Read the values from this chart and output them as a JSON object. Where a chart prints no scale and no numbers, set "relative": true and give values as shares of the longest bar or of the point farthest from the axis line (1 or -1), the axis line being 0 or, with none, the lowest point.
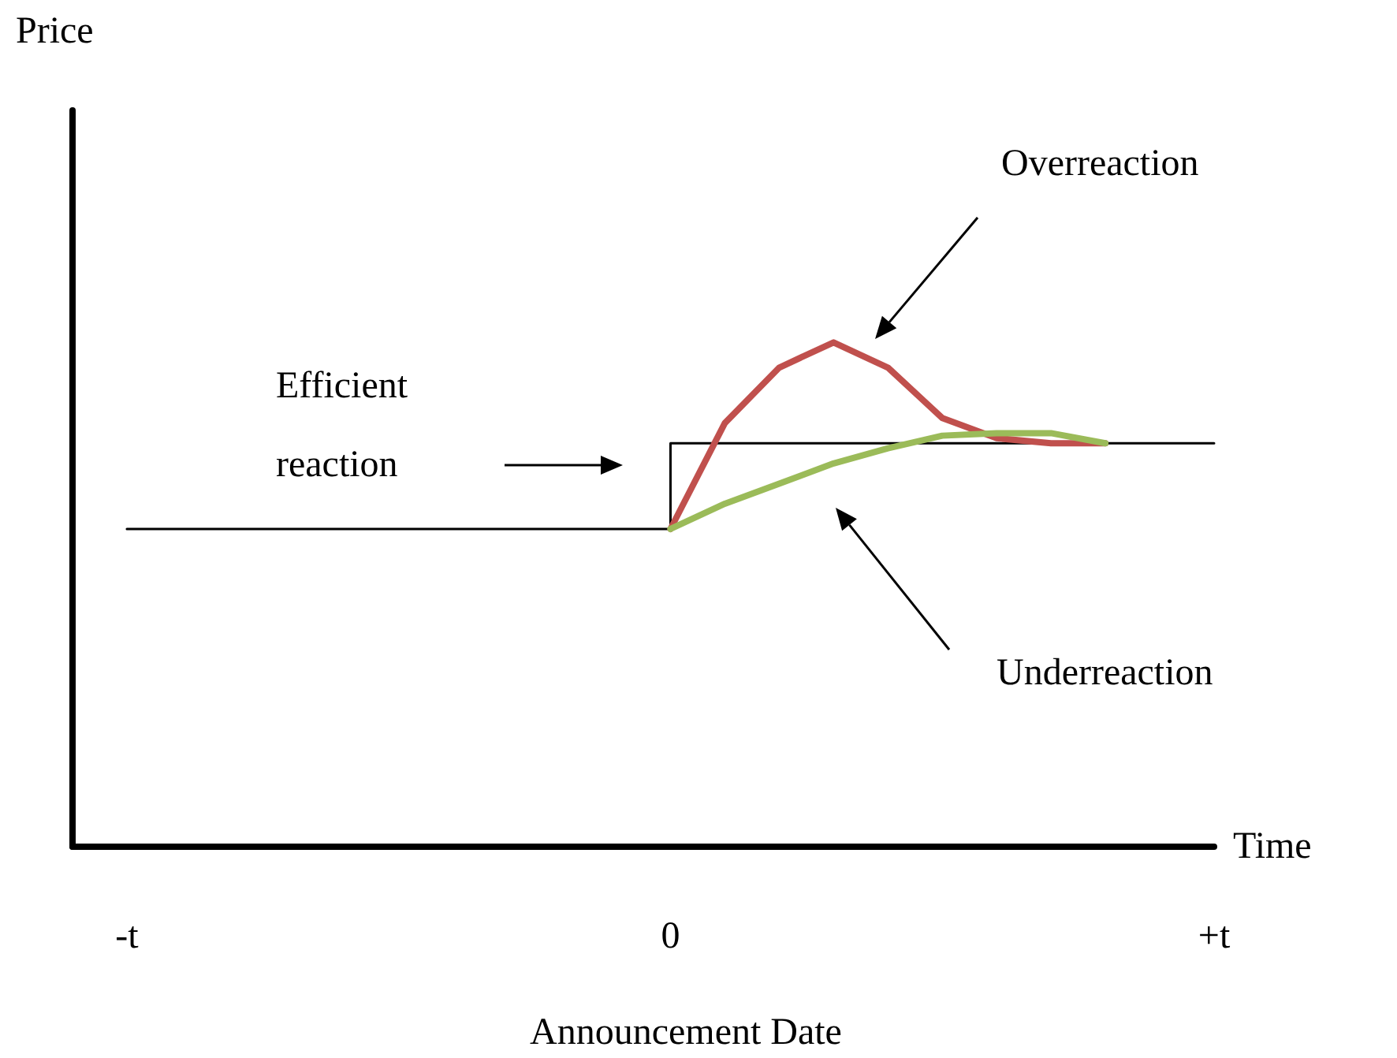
{
  "chart_data": {
    "type": "line",
    "relative": true,
    "xlabel": "Time",
    "categories": [
      null,
      "-t",
      null,
      null,
      null,
      null,
      null,
      null,
      null,
      null,
      null,
      "0",
      null,
      null,
      null,
      null,
      null,
      null,
      null,
      null,
      null,
      "+t"
    ],
    "series": [
      {
        "type": "step",
        "color": "#000000",
        "values": [
          null,
          0.63,
          0.63,
          0.63,
          0.63,
          0.63,
          0.63,
          0.63,
          0.63,
          0.63,
          0.63,
          0.8,
          0.8,
          0.8,
          0.8,
          0.8,
          0.8,
          0.8,
          0.8,
          0.8,
          0.8,
          0.8
        ]
      },
      {
        "color": "#c0504d",
        "values": [
          null,
          null,
          null,
          null,
          null,
          null,
          null,
          null,
          null,
          null,
          null,
          0.63,
          0.84,
          0.95,
          1.0,
          0.95,
          0.85,
          0.81,
          0.8,
          0.8,
          null,
          null
        ]
      },
      {
        "color": "#9bbb59",
        "values": [
          null,
          null,
          null,
          null,
          null,
          null,
          null,
          null,
          null,
          null,
          null,
          0.63,
          0.68,
          0.72,
          0.76,
          0.79,
          0.815,
          0.82,
          0.82,
          0.8,
          null,
          null
        ]
      }
    ],
    "annotations": [
      "Overreaction",
      "Underreaction",
      "Efficient reaction",
      "Announcement Date",
      "Price"
    ],
    "marker": "none",
    "line_style": "solid",
    "grid": false
  }
}
